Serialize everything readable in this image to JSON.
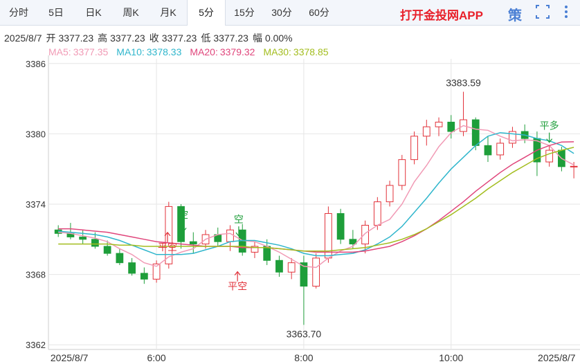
{
  "tabs": [
    "分时",
    "5日",
    "日K",
    "周K",
    "月K",
    "5分",
    "15分",
    "30分",
    "60分"
  ],
  "active_tab": "5分",
  "app_link": "打开金投网APP",
  "strategy_icon": "策",
  "info": {
    "date": "2025/8/7",
    "items": [
      {
        "label": "开",
        "value": "3377.23"
      },
      {
        "label": "高",
        "value": "3377.23"
      },
      {
        "label": "收",
        "value": "3377.23"
      },
      {
        "label": "低",
        "value": "3377.23"
      },
      {
        "label": "幅",
        "value": "0.00%"
      }
    ]
  },
  "chart_data": {
    "type": "candlestick",
    "x": [
      280,
      290,
      300,
      310,
      320,
      330,
      340,
      350,
      360,
      370,
      380,
      390,
      400,
      410,
      420,
      430,
      440,
      450,
      460,
      470,
      480,
      490,
      500,
      510,
      520,
      530,
      540,
      550,
      560,
      570,
      580,
      590,
      600,
      610,
      620,
      630,
      640,
      650,
      660,
      670,
      680,
      690,
      700
    ],
    "open": [
      3371.8,
      3371.5,
      3371.2,
      3371.0,
      3370.4,
      3369.8,
      3369.0,
      3368.1,
      3367.6,
      3368.9,
      3373.8,
      3370.8,
      3370.6,
      3371.4,
      3370.8,
      3371.8,
      3369.9,
      3370.4,
      3369.2,
      3368.2,
      3369.0,
      3367.0,
      3369.4,
      3373.2,
      3371.0,
      3370.6,
      3372.2,
      3374.2,
      3375.6,
      3377.8,
      3379.8,
      3380.6,
      3381.0,
      3380.2,
      3381.2,
      3379.0,
      3378.2,
      3379.2,
      3380.2,
      3379.6,
      3377.6,
      3378.6,
      3377.23
    ],
    "high": [
      3372.2,
      3372.4,
      3371.8,
      3371.6,
      3370.9,
      3370.2,
      3369.4,
      3368.6,
      3369.2,
      3374.2,
      3374.0,
      3371.6,
      3371.8,
      3372.0,
      3372.2,
      3372.3,
      3370.8,
      3371.0,
      3369.6,
      3369.4,
      3369.6,
      3369.8,
      3373.8,
      3373.6,
      3371.8,
      3372.6,
      3374.6,
      3376.0,
      3378.2,
      3380.2,
      3381.2,
      3381.4,
      3381.6,
      3383.59,
      3381.4,
      3379.8,
      3379.6,
      3380.6,
      3380.8,
      3380.2,
      3379.0,
      3378.9,
      3377.6
    ],
    "low": [
      3371.2,
      3371.0,
      3370.6,
      3370.2,
      3369.6,
      3368.8,
      3367.9,
      3367.2,
      3367.3,
      3368.5,
      3370.2,
      3369.8,
      3370.2,
      3370.4,
      3370.0,
      3369.6,
      3369.4,
      3368.8,
      3367.8,
      3367.6,
      3363.7,
      3366.8,
      3369.0,
      3370.6,
      3370.2,
      3369.8,
      3371.8,
      3373.8,
      3375.2,
      3377.4,
      3379.0,
      3379.8,
      3379.6,
      3379.8,
      3378.6,
      3377.6,
      3377.8,
      3378.8,
      3379.2,
      3376.4,
      3377.2,
      3376.8,
      3376.2
    ],
    "close": [
      3371.5,
      3371.2,
      3371.0,
      3370.4,
      3369.8,
      3369.0,
      3368.1,
      3367.6,
      3368.9,
      3373.8,
      3370.8,
      3370.6,
      3371.4,
      3370.8,
      3371.8,
      3369.9,
      3370.4,
      3369.2,
      3368.2,
      3369.0,
      3367.0,
      3369.4,
      3373.2,
      3371.0,
      3370.6,
      3372.2,
      3374.2,
      3375.6,
      3377.8,
      3379.8,
      3380.6,
      3381.0,
      3380.2,
      3381.2,
      3379.0,
      3378.2,
      3379.2,
      3380.2,
      3379.6,
      3377.6,
      3378.6,
      3377.2,
      3377.23
    ],
    "up_color": "#e2323a",
    "down_color": "#1e9e3a",
    "series": [
      {
        "name": "MA5:",
        "color": "#f19ab5",
        "values": [
          3371.6,
          3371.5,
          3371.3,
          3371.1,
          3370.8,
          3370.2,
          3369.7,
          3369.0,
          3368.7,
          3369.5,
          3369.9,
          3370.2,
          3371.0,
          3371.4,
          3371.5,
          3370.9,
          3370.8,
          3370.4,
          3369.9,
          3369.3,
          3368.7,
          3368.6,
          3369.4,
          3370.0,
          3370.4,
          3371.5,
          3372.2,
          3372.7,
          3374.0,
          3375.9,
          3377.3,
          3378.9,
          3380.1,
          3380.7,
          3380.4,
          3380.3,
          3379.8,
          3379.4,
          3379.5,
          3379.4,
          3379.0,
          3377.9,
          3377.35
        ]
      },
      {
        "name": "MA10:",
        "color": "#2fb6cc",
        "values": [
          3371.7,
          3371.6,
          3371.5,
          3371.4,
          3371.2,
          3370.9,
          3370.5,
          3370.1,
          3369.7,
          3369.7,
          3369.7,
          3369.8,
          3370.1,
          3370.4,
          3370.8,
          3370.9,
          3370.9,
          3370.7,
          3370.5,
          3370.2,
          3369.8,
          3369.6,
          3369.6,
          3369.7,
          3369.8,
          3370.1,
          3370.6,
          3371.2,
          3372.1,
          3373.3,
          3374.5,
          3375.8,
          3377.0,
          3378.0,
          3379.0,
          3379.8,
          3380.1,
          3380.0,
          3379.9,
          3379.6,
          3379.4,
          3379.0,
          3378.33
        ]
      },
      {
        "name": "MA20:",
        "color": "#e0457b",
        "values": [
          3371.9,
          3371.9,
          3371.8,
          3371.7,
          3371.6,
          3371.4,
          3371.2,
          3371.0,
          3370.8,
          3370.7,
          3370.6,
          3370.5,
          3370.4,
          3370.4,
          3370.4,
          3370.3,
          3370.3,
          3370.3,
          3370.2,
          3370.1,
          3370.0,
          3369.9,
          3369.9,
          3369.9,
          3369.9,
          3370.0,
          3370.2,
          3370.4,
          3370.8,
          3371.3,
          3371.9,
          3372.6,
          3373.4,
          3374.2,
          3375.1,
          3375.9,
          3376.7,
          3377.4,
          3378.0,
          3378.6,
          3379.0,
          3379.3,
          3379.32
        ]
      },
      {
        "name": "MA30:",
        "color": "#a3bd1e",
        "values": [
          3370.6,
          3370.6,
          3370.6,
          3370.6,
          3370.6,
          3370.5,
          3370.5,
          3370.4,
          3370.4,
          3370.4,
          3370.4,
          3370.4,
          3370.4,
          3370.4,
          3370.4,
          3370.4,
          3370.3,
          3370.3,
          3370.2,
          3370.1,
          3370.0,
          3370.0,
          3370.0,
          3370.1,
          3370.2,
          3370.3,
          3370.5,
          3370.7,
          3371.0,
          3371.4,
          3371.9,
          3372.5,
          3373.1,
          3373.8,
          3374.5,
          3375.3,
          3376.0,
          3376.7,
          3377.3,
          3377.9,
          3378.3,
          3378.6,
          3378.85
        ]
      }
    ],
    "xlim": [
      272,
      705
    ],
    "ylim": [
      3361.6,
      3386.4
    ],
    "xticks": [
      {
        "value": 289,
        "label": "2025/8/7"
      },
      {
        "value": 360,
        "label": "6:00"
      },
      {
        "value": 480,
        "label": "8:00"
      },
      {
        "value": 600,
        "label": "10:00"
      },
      {
        "value": 686,
        "label": "2025/8/7"
      }
    ],
    "yticks": [
      3362,
      3368,
      3374,
      3380,
      3386
    ],
    "grid": true,
    "annotations": [
      {
        "x": 610,
        "y": 3383.59,
        "label": "3383.59"
      },
      {
        "x": 480,
        "y": 3363.7,
        "label": "3363.70"
      }
    ],
    "signals": [
      {
        "x": 369,
        "y": 3370.05,
        "text": "平空",
        "dir": "up",
        "color": "#e2323a"
      },
      {
        "x": 382,
        "y": 3372.8,
        "text": "空",
        "dir": "down",
        "color": "#1e9e3a"
      },
      {
        "x": 427,
        "y": 3372.4,
        "text": "空",
        "dir": "down",
        "color": "#1e9e3a"
      },
      {
        "x": 426,
        "y": 3366.7,
        "text": "平空",
        "dir": "up",
        "color": "#e2323a"
      },
      {
        "x": 680,
        "y": 3380.4,
        "text": "平多",
        "dir": "down",
        "color": "#1e9e3a"
      }
    ]
  }
}
